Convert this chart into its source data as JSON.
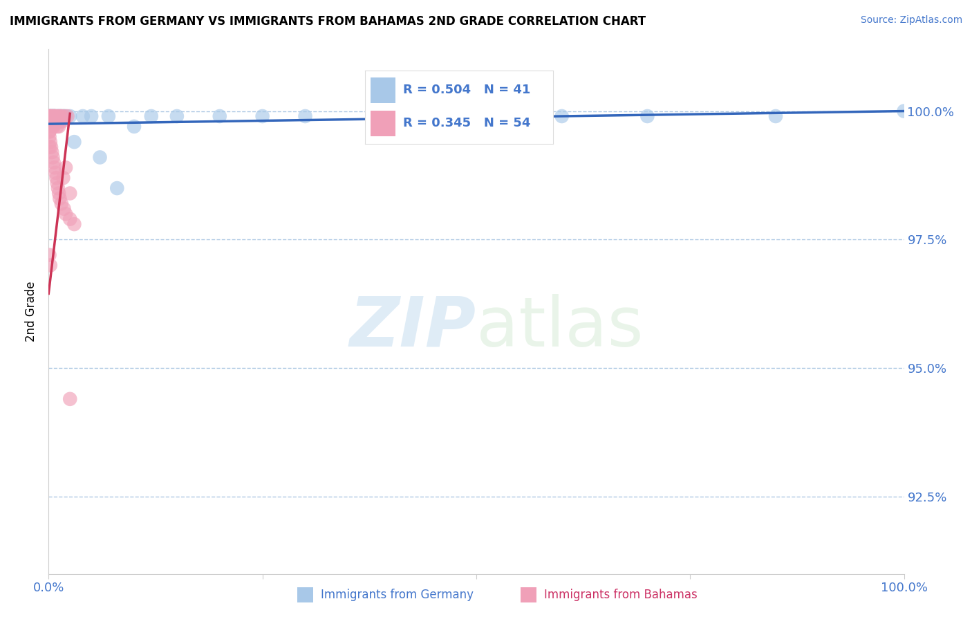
{
  "title": "IMMIGRANTS FROM GERMANY VS IMMIGRANTS FROM BAHAMAS 2ND GRADE CORRELATION CHART",
  "source": "Source: ZipAtlas.com",
  "ylabel": "2nd Grade",
  "ytick_labels": [
    "100.0%",
    "97.5%",
    "95.0%",
    "92.5%"
  ],
  "ytick_values": [
    1.0,
    0.975,
    0.95,
    0.925
  ],
  "xmin": 0.0,
  "xmax": 1.0,
  "ymin": 0.91,
  "ymax": 1.012,
  "germany_R": 0.504,
  "germany_N": 41,
  "bahamas_R": 0.345,
  "bahamas_N": 54,
  "germany_color": "#a8c8e8",
  "bahamas_color": "#f0a0b8",
  "germany_line_color": "#3366bb",
  "bahamas_line_color": "#cc3355",
  "germany_x": [
    0.001,
    0.001,
    0.002,
    0.003,
    0.003,
    0.004,
    0.004,
    0.005,
    0.005,
    0.006,
    0.006,
    0.007,
    0.008,
    0.009,
    0.01,
    0.011,
    0.012,
    0.013,
    0.014,
    0.016,
    0.018,
    0.02,
    0.025,
    0.03,
    0.04,
    0.05,
    0.06,
    0.07,
    0.08,
    0.1,
    0.12,
    0.15,
    0.2,
    0.25,
    0.3,
    0.4,
    0.5,
    0.6,
    0.7,
    0.85,
    1.0
  ],
  "germany_y": [
    0.999,
    0.998,
    0.999,
    0.999,
    0.998,
    0.999,
    0.998,
    0.999,
    0.999,
    0.999,
    0.998,
    0.999,
    0.999,
    0.998,
    0.999,
    0.999,
    0.998,
    0.999,
    0.999,
    0.999,
    0.999,
    0.999,
    0.999,
    0.994,
    0.999,
    0.999,
    0.991,
    0.999,
    0.985,
    0.997,
    0.999,
    0.999,
    0.999,
    0.999,
    0.999,
    0.999,
    0.999,
    0.999,
    0.999,
    0.999,
    1.0
  ],
  "bahamas_x": [
    0.001,
    0.001,
    0.001,
    0.001,
    0.002,
    0.002,
    0.003,
    0.003,
    0.004,
    0.004,
    0.005,
    0.005,
    0.006,
    0.006,
    0.007,
    0.007,
    0.008,
    0.009,
    0.01,
    0.011,
    0.012,
    0.013,
    0.014,
    0.015,
    0.016,
    0.017,
    0.018,
    0.02,
    0.022,
    0.025,
    0.001,
    0.001,
    0.001,
    0.002,
    0.003,
    0.004,
    0.005,
    0.006,
    0.007,
    0.008,
    0.009,
    0.01,
    0.011,
    0.012,
    0.013,
    0.015,
    0.018,
    0.02,
    0.025,
    0.03,
    0.001,
    0.002,
    0.025,
    0.001
  ],
  "bahamas_y": [
    0.999,
    0.998,
    0.997,
    0.996,
    0.999,
    0.998,
    0.999,
    0.998,
    0.997,
    0.999,
    0.998,
    0.997,
    0.999,
    0.997,
    0.998,
    0.999,
    0.999,
    0.998,
    0.997,
    0.999,
    0.997,
    0.999,
    0.998,
    0.999,
    0.998,
    0.987,
    0.999,
    0.989,
    0.999,
    0.984,
    0.996,
    0.995,
    0.993,
    0.994,
    0.993,
    0.992,
    0.991,
    0.99,
    0.989,
    0.988,
    0.987,
    0.986,
    0.985,
    0.984,
    0.983,
    0.982,
    0.981,
    0.98,
    0.979,
    0.978,
    0.972,
    0.97,
    0.944,
    0.999
  ],
  "germany_trendline_x": [
    0.0,
    1.0
  ],
  "germany_trendline_y": [
    0.9975,
    1.0
  ],
  "bahamas_trendline_x": [
    0.0,
    0.025
  ],
  "bahamas_trendline_y": [
    0.9645,
    0.9995
  ],
  "watermark_zip": "ZIP",
  "watermark_atlas": "atlas",
  "legend_box_color_germany": "#a8c8e8",
  "legend_box_color_bahamas": "#f0a0b8",
  "title_fontsize": 12,
  "axis_label_color": "#4477cc",
  "grid_color": "#99bbdd",
  "background_color": "#ffffff"
}
